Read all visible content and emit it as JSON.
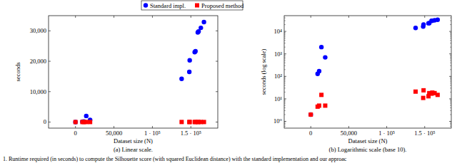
{
  "chart_data": [
    {
      "type": "scatter",
      "title": "(a) Linear scale.",
      "x_label": "Dataset size (N)",
      "y_label": "seconds",
      "legend": "top",
      "marker": "circle",
      "xlim": [
        -35000,
        185000
      ],
      "xticks": [
        0,
        {
          "value": 50000,
          "label": "50,000"
        },
        {
          "value": 100000,
          "label": "1 · 10⁵"
        },
        {
          "value": 150000,
          "label": "1.5 · 10⁵"
        }
      ],
      "ylim": [
        -2000,
        35000
      ],
      "yticks": [
        0,
        {
          "value": 10000,
          "label": "10,000"
        },
        {
          "value": 20000,
          "label": "20,000"
        },
        {
          "value": 30000,
          "label": "30,000"
        }
      ],
      "series": [
        {
          "name": "Standard impl.",
          "color": "#0000ff",
          "marker": "circle",
          "x": [
            0,
            9000,
            11000,
            14000,
            19000,
            138000,
            148000,
            148500,
            155000,
            156000,
            159000,
            160000,
            163000,
            167000
          ],
          "values": [
            2,
            130,
            170,
            2000,
            700,
            14200,
            16500,
            20300,
            23000,
            23300,
            29500,
            29800,
            31000,
            32900
          ]
        },
        {
          "name": "Proposed method",
          "color": "#ff0000",
          "marker": "square",
          "x": [
            0,
            9000,
            11000,
            14000,
            19000,
            138000,
            148000,
            148500,
            155000,
            156000,
            159000,
            160000,
            163000,
            167000
          ],
          "values": [
            2,
            4.5,
            5,
            15,
            5,
            21,
            11,
            24,
            13,
            18,
            17,
            19,
            18,
            15
          ]
        }
      ]
    },
    {
      "type": "scatter",
      "title": "(b) Logarithmic scale (base 10).",
      "x_label": "Dataset size (N)",
      "y_label": "seconds (log scale)",
      "log": "y",
      "marker": "circle",
      "xlim": [
        -35000,
        185000
      ],
      "xticks": [
        0,
        {
          "value": 50000,
          "label": "50,000"
        },
        {
          "value": 100000,
          "label": "1 · 10⁵"
        },
        {
          "value": 150000,
          "label": "1.5 · 10⁵"
        }
      ],
      "ylim": [
        0.5,
        50000
      ],
      "yticks": [
        {
          "value": 1,
          "label": "10⁰"
        },
        {
          "value": 10,
          "label": "10¹"
        },
        {
          "value": 100,
          "label": "10²"
        },
        {
          "value": 1000,
          "label": "10³"
        },
        {
          "value": 10000,
          "label": "10⁴"
        }
      ],
      "series": [
        {
          "color": "#0000ff",
          "marker": "circle",
          "x": [
            0,
            9000,
            11000,
            14000,
            19000,
            138000,
            148000,
            148500,
            155000,
            156000,
            159000,
            160000,
            163000,
            167000
          ],
          "values": [
            2,
            130,
            170,
            2000,
            700,
            14200,
            16500,
            20300,
            23000,
            23300,
            29500,
            29800,
            31000,
            32900
          ]
        },
        {
          "color": "#ff0000",
          "marker": "square",
          "x": [
            0,
            9000,
            11000,
            14000,
            19000,
            138000,
            148000,
            148500,
            155000,
            156000,
            159000,
            160000,
            163000,
            167000
          ],
          "values": [
            2,
            4.5,
            5,
            15,
            5,
            21,
            11,
            24,
            13,
            18,
            17,
            19,
            18,
            15
          ]
        }
      ]
    }
  ],
  "caption": "1.   Runtime required (in seconds) to compute the Silhouette score (with squared Euclidean distance) with the standard implementation and our approac"
}
